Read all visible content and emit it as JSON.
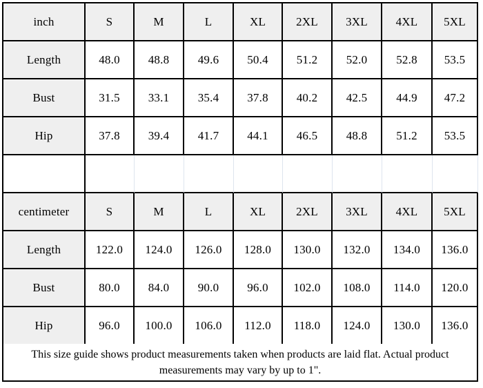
{
  "page": {
    "background": "#ffffff"
  },
  "colors": {
    "border": "#000000",
    "header_fill": "#efefef",
    "cell_fill": "#ffffff",
    "spacer_gridline": "#dde4ee",
    "text": "#000000"
  },
  "size_chart": {
    "sections": [
      {
        "unit": "inch",
        "sizes": [
          "S",
          "M",
          "L",
          "XL",
          "2XL",
          "3XL",
          "4XL",
          "5XL"
        ],
        "rows": [
          {
            "label": "Length",
            "values": [
              "48.0",
              "48.8",
              "49.6",
              "50.4",
              "51.2",
              "52.0",
              "52.8",
              "53.5"
            ]
          },
          {
            "label": "Bust",
            "values": [
              "31.5",
              "33.1",
              "35.4",
              "37.8",
              "40.2",
              "42.5",
              "44.9",
              "47.2"
            ]
          },
          {
            "label": "Hip",
            "values": [
              "37.8",
              "39.4",
              "41.7",
              "44.1",
              "46.5",
              "48.8",
              "51.2",
              "53.5"
            ]
          }
        ]
      },
      {
        "unit": "centimeter",
        "sizes": [
          "S",
          "M",
          "L",
          "XL",
          "2XL",
          "3XL",
          "4XL",
          "5XL"
        ],
        "rows": [
          {
            "label": "Length",
            "values": [
              "122.0",
              "124.0",
              "126.0",
              "128.0",
              "130.0",
              "132.0",
              "134.0",
              "136.0"
            ]
          },
          {
            "label": "Bust",
            "values": [
              "80.0",
              "84.0",
              "90.0",
              "96.0",
              "102.0",
              "108.0",
              "114.0",
              "120.0"
            ]
          },
          {
            "label": "Hip",
            "values": [
              "96.0",
              "100.0",
              "106.0",
              "112.0",
              "118.0",
              "124.0",
              "130.0",
              "136.0"
            ]
          }
        ]
      }
    ]
  },
  "footer": {
    "line1": "This size guide shows product measurements taken when products are laid flat. Actual product",
    "line2": "measurements may vary by up to 1\"."
  }
}
